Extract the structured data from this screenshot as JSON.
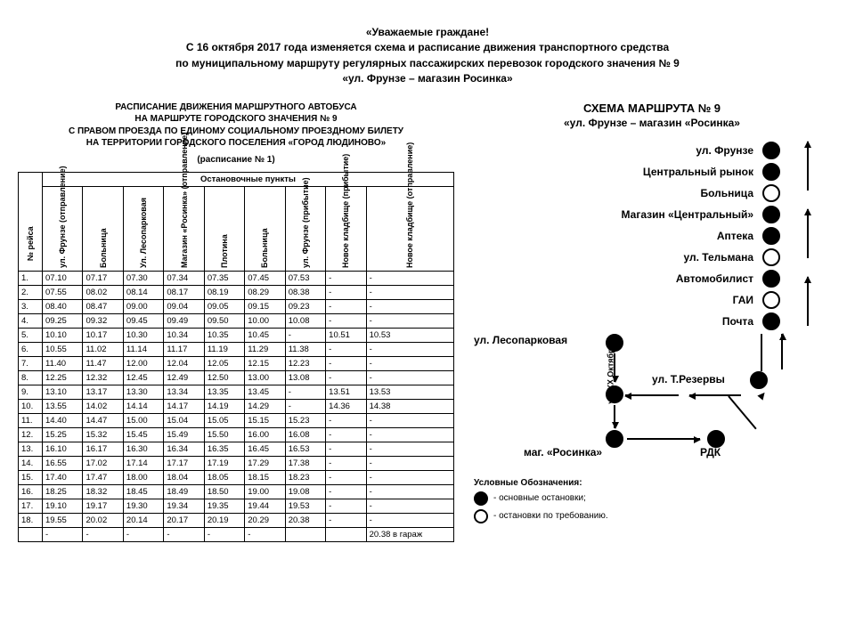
{
  "announce": {
    "l1": "«Уважаемые граждане!",
    "l2": "С 16 октября 2017 года изменяется схема и расписание движения транспортного средства",
    "l3": "по муниципальному маршруту регулярных пассажирских перевозок городского значения № 9",
    "l4": "«ул. Фрунзе – магазин Росинка»"
  },
  "schedule": {
    "title1": "РАСПИСАНИЕ ДВИЖЕНИЯ МАРШРУТНОГО АВТОБУСА",
    "title2": "НА МАРШРУТЕ ГОРОДСКОГО ЗНАЧЕНИЯ № 9",
    "title3": "С ПРАВОМ ПРОЕЗДА ПО ЕДИНОМУ СОЦИАЛЬНОМУ ПРОЕЗДНОМУ БИЛЕТУ",
    "title4": "НА ТЕРРИТОРИИ ГОРОДСКОГО ПОСЕЛЕНИЯ «ГОРОД ЛЮДИНОВО»",
    "sub": "(расписание № 1)",
    "head_group": "Остановочные пункты",
    "columns": [
      "№ рейса",
      "ул. Фрунзе (отправление)",
      "Больница",
      "Ул. Лесопарковая",
      "Магазин «Росинка» (отправление)",
      "Плотина",
      "Больница",
      "ул. Фрунзе (прибытие)",
      "Новое кладбище (прибытие)",
      "Новое кладбище (отправление)"
    ],
    "rows": [
      [
        "1.",
        "07.10",
        "07.17",
        "07.30",
        "07.34",
        "07.35",
        "07.45",
        "07.53",
        "-",
        "-"
      ],
      [
        "2.",
        "07.55",
        "08.02",
        "08.14",
        "08.17",
        "08.19",
        "08.29",
        "08.38",
        "-",
        "-"
      ],
      [
        "3.",
        "08.40",
        "08.47",
        "09.00",
        "09.04",
        "09.05",
        "09.15",
        "09.23",
        "-",
        "-"
      ],
      [
        "4.",
        "09.25",
        "09.32",
        "09.45",
        "09.49",
        "09.50",
        "10.00",
        "10.08",
        "-",
        "-"
      ],
      [
        "5.",
        "10.10",
        "10.17",
        "10.30",
        "10.34",
        "10.35",
        "10.45",
        "-",
        "10.51",
        "10.53"
      ],
      [
        "6.",
        "10.55",
        "11.02",
        "11.14",
        "11.17",
        "11.19",
        "11.29",
        "11.38",
        "-",
        "-"
      ],
      [
        "7.",
        "11.40",
        "11.47",
        "12.00",
        "12.04",
        "12.05",
        "12.15",
        "12.23",
        "-",
        "-"
      ],
      [
        "8.",
        "12.25",
        "12.32",
        "12.45",
        "12.49",
        "12.50",
        "13.00",
        "13.08",
        "-",
        "-"
      ],
      [
        "9.",
        "13.10",
        "13.17",
        "13.30",
        "13.34",
        "13.35",
        "13.45",
        "-",
        "13.51",
        "13.53"
      ],
      [
        "10.",
        "13.55",
        "14.02",
        "14.14",
        "14.17",
        "14.19",
        "14.29",
        "-",
        "14.36",
        "14.38"
      ],
      [
        "11.",
        "14.40",
        "14.47",
        "15.00",
        "15.04",
        "15.05",
        "15.15",
        "15.23",
        "-",
        "-"
      ],
      [
        "12.",
        "15.25",
        "15.32",
        "15.45",
        "15.49",
        "15.50",
        "16.00",
        "16.08",
        "-",
        "-"
      ],
      [
        "13.",
        "16.10",
        "16.17",
        "16.30",
        "16.34",
        "16.35",
        "16.45",
        "16.53",
        "-",
        "-"
      ],
      [
        "14.",
        "16.55",
        "17.02",
        "17.14",
        "17.17",
        "17.19",
        "17.29",
        "17.38",
        "-",
        "-"
      ],
      [
        "15.",
        "17.40",
        "17.47",
        "18.00",
        "18.04",
        "18.05",
        "18.15",
        "18.23",
        "-",
        "-"
      ],
      [
        "16.",
        "18.25",
        "18.32",
        "18.45",
        "18.49",
        "18.50",
        "19.00",
        "19.08",
        "-",
        "-"
      ],
      [
        "17.",
        "19.10",
        "19.17",
        "19.30",
        "19.34",
        "19.35",
        "19.44",
        "19.53",
        "-",
        "-"
      ],
      [
        "18.",
        "19.55",
        "20.02",
        "20.14",
        "20.17",
        "20.19",
        "20.29",
        "20.38",
        "-",
        "-"
      ],
      [
        "",
        "-",
        "-",
        "-",
        "-",
        "-",
        "-",
        "",
        "",
        "20.38 в гараж"
      ]
    ]
  },
  "route": {
    "title": "СХЕМА МАРШРУТА № 9",
    "sub": "«ул. Фрунзе – магазин «Росинка»",
    "stops": [
      {
        "label": "ул. Фрунзе",
        "filled": true
      },
      {
        "label": "Центральный рынок",
        "filled": true
      },
      {
        "label": "Больница",
        "filled": false
      },
      {
        "label": "Магазин «Центральный»",
        "filled": true
      },
      {
        "label": "Аптека",
        "filled": true
      },
      {
        "label": "ул. Тельмана",
        "filled": false
      },
      {
        "label": "Автомобилист",
        "filled": true
      },
      {
        "label": "ГАИ",
        "filled": false
      },
      {
        "label": "Почта",
        "filled": true
      }
    ],
    "bottom": {
      "lesoparkovaya": "ул. Лесопарковая",
      "xx_okt": "ул. XX Октября",
      "rezervy": "ул. Т.Резервы",
      "rosinka": "маг. «Росинка»",
      "rdk": "РДК"
    },
    "legend_title": "Условные Обозначения:",
    "legend1": "- основные остановки;",
    "legend2": "- остановки по требованию."
  }
}
